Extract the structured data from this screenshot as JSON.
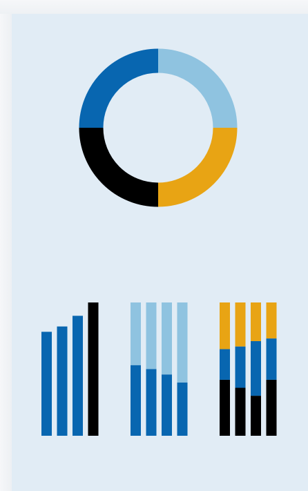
{
  "colors": {
    "dark_blue": "#0866b0",
    "light_blue": "#8fc3e0",
    "orange": "#e8a414",
    "black": "#000000",
    "panel_background": "#e1ecf5"
  },
  "donut": {
    "segments": [
      {
        "color": "light_blue",
        "share": 0.25
      },
      {
        "color": "orange",
        "share": 0.25
      },
      {
        "color": "black",
        "share": 0.25
      },
      {
        "color": "dark_blue",
        "share": 0.25
      }
    ]
  },
  "bar_groups": [
    {
      "kind": "ascending",
      "bars": [
        {
          "color": "dark_blue",
          "value": 0.78
        },
        {
          "color": "dark_blue",
          "value": 0.82
        },
        {
          "color": "dark_blue",
          "value": 0.9
        },
        {
          "color": "black",
          "value": 1.0
        }
      ]
    },
    {
      "kind": "two-part stacked",
      "bars": [
        {
          "parts": [
            {
              "color": "dark_blue",
              "value": 0.53
            },
            {
              "color": "light_blue",
              "value": 0.47
            }
          ]
        },
        {
          "parts": [
            {
              "color": "dark_blue",
              "value": 0.5
            },
            {
              "color": "light_blue",
              "value": 0.5
            }
          ]
        },
        {
          "parts": [
            {
              "color": "dark_blue",
              "value": 0.46
            },
            {
              "color": "light_blue",
              "value": 0.54
            }
          ]
        },
        {
          "parts": [
            {
              "color": "dark_blue",
              "value": 0.4
            },
            {
              "color": "light_blue",
              "value": 0.6
            }
          ]
        }
      ]
    },
    {
      "kind": "three-part stacked",
      "bars": [
        {
          "parts": [
            {
              "color": "black",
              "value": 0.42
            },
            {
              "color": "dark_blue",
              "value": 0.23
            },
            {
              "color": "orange",
              "value": 0.35
            }
          ]
        },
        {
          "parts": [
            {
              "color": "black",
              "value": 0.36
            },
            {
              "color": "dark_blue",
              "value": 0.31
            },
            {
              "color": "orange",
              "value": 0.33
            }
          ]
        },
        {
          "parts": [
            {
              "color": "black",
              "value": 0.3
            },
            {
              "color": "dark_blue",
              "value": 0.41
            },
            {
              "color": "orange",
              "value": 0.29
            }
          ]
        },
        {
          "parts": [
            {
              "color": "black",
              "value": 0.42
            },
            {
              "color": "dark_blue",
              "value": 0.31
            },
            {
              "color": "orange",
              "value": 0.27
            }
          ]
        }
      ]
    }
  ]
}
